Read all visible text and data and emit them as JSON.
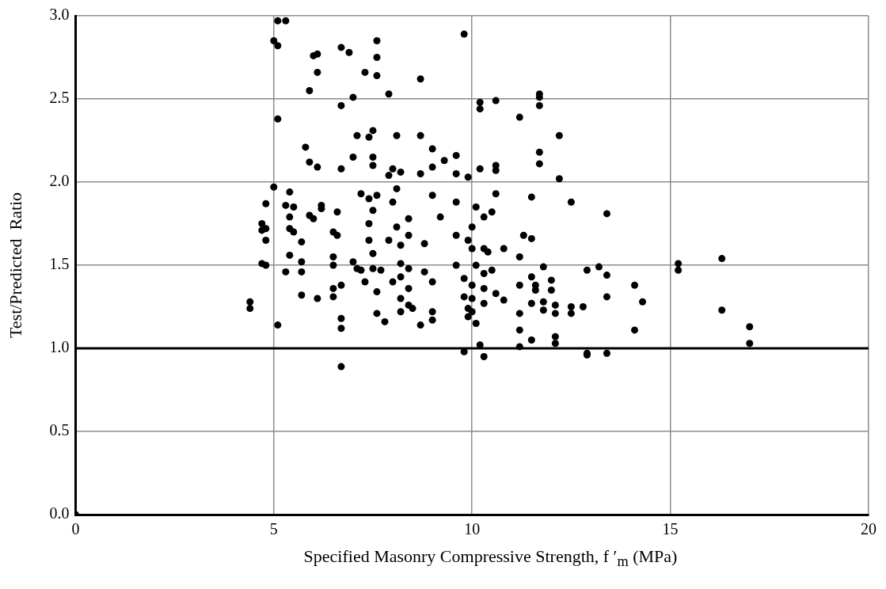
{
  "chart_data": {
    "type": "scatter",
    "xlabel": "Specified Masonry Compressive Strength, f ′$_{m}$ (MPa)",
    "ylabel": "Test/Predicted  Ratio",
    "xlim": [
      0,
      20
    ],
    "xticks": [
      0,
      5,
      10,
      15,
      20
    ],
    "ylim": [
      0,
      3
    ],
    "yticks": [
      {
        "value": 0,
        "label": "0.0"
      },
      {
        "value": 0.5,
        "label": "0.5"
      },
      {
        "value": 1,
        "label": "1.0"
      },
      {
        "value": 1.5,
        "label": "1.5"
      },
      {
        "value": 2,
        "label": "2.0"
      },
      {
        "value": 2.5,
        "label": "2.5"
      },
      {
        "value": 3,
        "label": "3.0"
      }
    ],
    "grid": true,
    "legend": false,
    "marker": "circle",
    "ref_lines": [
      {
        "axis": "y",
        "value": 1,
        "color": "#000000"
      }
    ],
    "series": [
      {
        "color": "#000000",
        "x": [
          0,
          4.4,
          4.4,
          4.7,
          4.7,
          4.8,
          4.8,
          4.8,
          4.7,
          4.8,
          5.0,
          5.1,
          5.1,
          5.3,
          5.1,
          5.0,
          5.1,
          5.3,
          5.3,
          5.4,
          5.4,
          5.4,
          5.5,
          5.5,
          5.4,
          5.7,
          5.7,
          5.7,
          5.7,
          5.8,
          5.9,
          5.9,
          6.0,
          6.1,
          6.1,
          6.1,
          5.9,
          6.0,
          6.1,
          6.2,
          6.2,
          6.5,
          6.5,
          6.5,
          6.5,
          6.5,
          6.6,
          6.6,
          6.7,
          6.7,
          6.7,
          6.7,
          6.7,
          6.7,
          6.7,
          6.9,
          7.0,
          7.0,
          7.1,
          7.0,
          7.1,
          7.2,
          7.2,
          7.3,
          7.3,
          7.4,
          7.4,
          7.4,
          7.4,
          7.5,
          7.5,
          7.5,
          7.5,
          7.5,
          7.5,
          7.6,
          7.6,
          7.6,
          7.6,
          7.6,
          7.6,
          7.7,
          7.8,
          7.9,
          7.9,
          7.9,
          8.0,
          8.0,
          8.0,
          8.1,
          8.1,
          8.1,
          8.2,
          8.2,
          8.2,
          8.2,
          8.2,
          8.2,
          8.4,
          8.4,
          8.4,
          8.4,
          8.4,
          8.5,
          8.7,
          8.7,
          8.7,
          8.7,
          8.8,
          8.8,
          9.0,
          9.0,
          9.0,
          9.0,
          9.0,
          9.0,
          9.2,
          9.3,
          9.6,
          9.6,
          9.6,
          9.6,
          9.6,
          9.8,
          9.8,
          9.8,
          9.8,
          9.9,
          9.9,
          9.9,
          9.9,
          10.0,
          10.0,
          10.0,
          10.0,
          10.0,
          10.1,
          10.1,
          10.1,
          10.2,
          10.2,
          10.2,
          10.2,
          10.3,
          10.3,
          10.3,
          10.3,
          10.3,
          10.3,
          10.4,
          10.5,
          10.5,
          10.6,
          10.6,
          10.6,
          10.6,
          10.6,
          10.8,
          10.8,
          11.2,
          11.2,
          11.2,
          11.2,
          11.2,
          11.2,
          11.3,
          11.5,
          11.5,
          11.5,
          11.5,
          11.5,
          11.6,
          11.6,
          11.7,
          11.7,
          11.7,
          11.7,
          11.7,
          11.8,
          11.8,
          11.8,
          12.0,
          12.0,
          12.1,
          12.1,
          12.1,
          12.1,
          12.2,
          12.2,
          12.5,
          12.5,
          12.5,
          12.8,
          12.9,
          12.9,
          12.9,
          13.2,
          13.4,
          13.4,
          13.4,
          13.4,
          14.1,
          14.1,
          14.3,
          15.2,
          15.2,
          16.3,
          16.3,
          17.0,
          17.0
        ],
        "values": [
          0,
          1.28,
          1.24,
          1.75,
          1.71,
          1.87,
          1.72,
          1.65,
          1.51,
          1.5,
          2.85,
          2.82,
          2.97,
          2.97,
          2.38,
          1.97,
          1.14,
          1.86,
          1.46,
          1.94,
          1.79,
          1.72,
          1.85,
          1.7,
          1.56,
          1.64,
          1.52,
          1.46,
          1.32,
          2.21,
          2.55,
          2.12,
          2.76,
          2.77,
          2.66,
          2.09,
          1.8,
          1.78,
          1.3,
          1.86,
          1.84,
          1.7,
          1.55,
          1.5,
          1.36,
          1.31,
          1.82,
          1.68,
          2.81,
          2.46,
          2.08,
          1.38,
          1.18,
          1.12,
          0.89,
          2.78,
          2.51,
          2.15,
          2.28,
          1.52,
          1.48,
          1.93,
          1.47,
          2.66,
          1.4,
          2.27,
          1.9,
          1.75,
          1.65,
          2.31,
          2.15,
          2.1,
          1.83,
          1.57,
          1.48,
          2.85,
          2.75,
          2.64,
          1.92,
          1.34,
          1.21,
          1.47,
          1.16,
          2.53,
          2.04,
          1.65,
          2.08,
          1.88,
          1.4,
          2.28,
          1.96,
          1.73,
          2.06,
          1.62,
          1.51,
          1.43,
          1.3,
          1.22,
          1.78,
          1.68,
          1.48,
          1.36,
          1.26,
          1.24,
          2.62,
          2.28,
          2.05,
          1.14,
          1.63,
          1.46,
          2.2,
          2.09,
          1.92,
          1.4,
          1.22,
          1.17,
          1.79,
          2.13,
          2.16,
          2.05,
          1.88,
          1.68,
          1.5,
          2.89,
          1.42,
          1.31,
          0.98,
          2.03,
          1.65,
          1.24,
          1.19,
          1.73,
          1.6,
          1.38,
          1.3,
          1.22,
          1.85,
          1.5,
          1.15,
          2.48,
          2.44,
          2.08,
          1.02,
          1.79,
          1.6,
          1.45,
          1.36,
          1.27,
          0.95,
          1.58,
          1.82,
          1.47,
          2.49,
          2.1,
          2.07,
          1.93,
          1.33,
          1.6,
          1.29,
          2.39,
          1.55,
          1.38,
          1.21,
          1.11,
          1.01,
          1.68,
          1.91,
          1.66,
          1.43,
          1.27,
          1.05,
          1.38,
          1.35,
          2.53,
          2.51,
          2.46,
          2.18,
          2.11,
          1.49,
          1.28,
          1.23,
          1.41,
          1.35,
          1.07,
          1.03,
          1.26,
          1.21,
          2.28,
          2.02,
          1.88,
          1.25,
          1.21,
          1.25,
          1.47,
          0.97,
          0.96,
          1.49,
          1.81,
          1.44,
          1.31,
          0.97,
          1.38,
          1.11,
          1.28,
          1.51,
          1.47,
          1.54,
          1.23,
          1.13,
          1.03
        ]
      }
    ]
  }
}
